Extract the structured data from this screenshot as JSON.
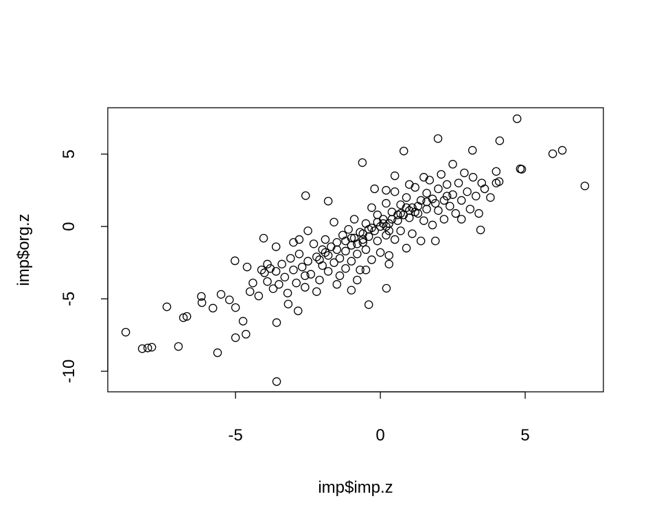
{
  "chart_data": {
    "type": "scatter",
    "title": "",
    "xlabel": "imp$imp.z",
    "ylabel": "imp$org.z",
    "xlim": [
      -9.41,
      7.7
    ],
    "ylim": [
      -11.42,
      8.2
    ],
    "xticks": [
      -5,
      0,
      5
    ],
    "yticks": [
      -10,
      -5,
      0,
      5
    ],
    "xtick_labels": [
      "-5",
      "0",
      "5"
    ],
    "ytick_labels": [
      "-10",
      "-5",
      "0",
      "5"
    ],
    "grid": false,
    "marker": "open-circle",
    "marker_color": "#000000",
    "points": [
      [
        -8.79,
        -7.3
      ],
      [
        -8.22,
        -8.44
      ],
      [
        -8.03,
        -8.39
      ],
      [
        -7.89,
        -8.34
      ],
      [
        -7.37,
        -5.55
      ],
      [
        -6.97,
        -8.29
      ],
      [
        -6.8,
        -6.3
      ],
      [
        -6.68,
        -6.21
      ],
      [
        -6.18,
        -4.83
      ],
      [
        -6.16,
        -5.26
      ],
      [
        -5.78,
        -5.64
      ],
      [
        -5.62,
        -8.72
      ],
      [
        -5.5,
        -4.69
      ],
      [
        -5.21,
        -5.07
      ],
      [
        -5.02,
        -2.37
      ],
      [
        -5.0,
        -7.68
      ],
      [
        -5.0,
        -5.6
      ],
      [
        -4.74,
        -6.54
      ],
      [
        -4.64,
        -7.44
      ],
      [
        -4.03,
        -0.81
      ],
      [
        -3.58,
        -10.71
      ],
      [
        -3.58,
        -6.64
      ],
      [
        -2.58,
        2.13
      ],
      [
        -1.8,
        1.75
      ],
      [
        -0.62,
        4.41
      ],
      [
        0.81,
        5.21
      ],
      [
        1.99,
        6.07
      ],
      [
        3.18,
        5.26
      ],
      [
        4.12,
        5.92
      ],
      [
        4.72,
        7.44
      ],
      [
        4.83,
        3.98
      ],
      [
        4.88,
        3.95
      ],
      [
        5.95,
        5.02
      ],
      [
        6.28,
        5.26
      ],
      [
        7.06,
        2.8
      ],
      [
        3.46,
        -0.24
      ],
      [
        -0.4,
        -5.4
      ],
      [
        0.21,
        -4.27
      ],
      [
        -3.18,
        -5.36
      ],
      [
        -2.84,
        -5.83
      ],
      [
        -4.0,
        -3.2
      ],
      [
        -3.9,
        -3.8
      ],
      [
        -3.8,
        -2.9
      ],
      [
        -3.7,
        -4.3
      ],
      [
        -3.6,
        -3.1
      ],
      [
        -3.5,
        -4.0
      ],
      [
        -3.4,
        -2.6
      ],
      [
        -3.3,
        -3.5
      ],
      [
        -3.2,
        -4.6
      ],
      [
        -3.1,
        -2.2
      ],
      [
        -3.0,
        -3.0
      ],
      [
        -2.9,
        -3.9
      ],
      [
        -2.8,
        -1.9
      ],
      [
        -2.7,
        -2.8
      ],
      [
        -2.6,
        -4.2
      ],
      [
        -2.5,
        -0.3
      ],
      [
        -2.5,
        -2.4
      ],
      [
        -2.4,
        -3.3
      ],
      [
        -2.3,
        -1.2
      ],
      [
        -2.2,
        -2.1
      ],
      [
        -2.1,
        -3.7
      ],
      [
        -2.0,
        -1.6
      ],
      [
        -2.0,
        -2.7
      ],
      [
        -1.9,
        -0.9
      ],
      [
        -1.8,
        -2.0
      ],
      [
        -1.8,
        -3.1
      ],
      [
        -1.7,
        -1.4
      ],
      [
        -1.6,
        -2.5
      ],
      [
        -1.6,
        0.3
      ],
      [
        -1.5,
        -1.1
      ],
      [
        -1.4,
        -2.2
      ],
      [
        -1.4,
        -3.4
      ],
      [
        -1.3,
        -0.6
      ],
      [
        -1.2,
        -1.7
      ],
      [
        -1.2,
        -2.9
      ],
      [
        -1.1,
        -0.2
      ],
      [
        -1.0,
        -1.3
      ],
      [
        -1.0,
        -2.4
      ],
      [
        -0.9,
        0.5
      ],
      [
        -0.9,
        -0.8
      ],
      [
        -0.8,
        -1.9
      ],
      [
        -0.7,
        -0.4
      ],
      [
        -0.7,
        -3.0
      ],
      [
        -0.6,
        -1.1
      ],
      [
        -0.5,
        0.2
      ],
      [
        -0.5,
        -1.6
      ],
      [
        -0.4,
        -0.7
      ],
      [
        -0.3,
        1.3
      ],
      [
        -0.3,
        -2.3
      ],
      [
        -0.2,
        -0.3
      ],
      [
        -0.1,
        -1.0
      ],
      [
        -0.1,
        0.8
      ],
      [
        0.0,
        0.0
      ],
      [
        0.0,
        -1.8
      ],
      [
        0.1,
        0.5
      ],
      [
        0.2,
        -0.6
      ],
      [
        0.2,
        1.6
      ],
      [
        0.3,
        -2.6
      ],
      [
        0.3,
        0.2
      ],
      [
        0.4,
        1.0
      ],
      [
        0.5,
        -0.9
      ],
      [
        0.5,
        2.4
      ],
      [
        0.6,
        0.4
      ],
      [
        0.7,
        -0.3
      ],
      [
        0.7,
        1.5
      ],
      [
        0.8,
        0.8
      ],
      [
        0.9,
        -1.5
      ],
      [
        0.9,
        2.0
      ],
      [
        1.0,
        0.6
      ],
      [
        1.1,
        1.3
      ],
      [
        1.1,
        -0.5
      ],
      [
        1.2,
        2.7
      ],
      [
        1.3,
        0.9
      ],
      [
        1.4,
        1.8
      ],
      [
        1.4,
        -1.0
      ],
      [
        1.5,
        0.4
      ],
      [
        1.6,
        2.3
      ],
      [
        1.6,
        1.2
      ],
      [
        1.7,
        3.2
      ],
      [
        1.8,
        0.1
      ],
      [
        1.8,
        1.9
      ],
      [
        1.9,
        -1.0
      ],
      [
        2.0,
        2.6
      ],
      [
        2.0,
        1.1
      ],
      [
        2.1,
        3.6
      ],
      [
        2.2,
        1.8
      ],
      [
        2.2,
        0.5
      ],
      [
        2.3,
        2.9
      ],
      [
        2.4,
        1.4
      ],
      [
        2.5,
        4.3
      ],
      [
        2.5,
        2.2
      ],
      [
        2.6,
        0.9
      ],
      [
        2.7,
        3.0
      ],
      [
        2.8,
        1.8
      ],
      [
        2.8,
        0.5
      ],
      [
        2.9,
        3.7
      ],
      [
        3.0,
        2.4
      ],
      [
        3.1,
        1.2
      ],
      [
        3.2,
        3.4
      ],
      [
        3.3,
        2.1
      ],
      [
        3.4,
        0.9
      ],
      [
        3.5,
        3.0
      ],
      [
        3.6,
        2.6
      ],
      [
        3.8,
        2.0
      ],
      [
        4.0,
        3.0
      ],
      [
        4.1,
        3.1
      ],
      [
        4.0,
        3.8
      ],
      [
        -2.6,
        -3.4
      ],
      [
        -3.0,
        -1.1
      ],
      [
        -2.2,
        -4.5
      ],
      [
        -1.5,
        -4.0
      ],
      [
        -0.8,
        -3.7
      ],
      [
        -1.0,
        -4.4
      ],
      [
        0.3,
        -2.0
      ],
      [
        -0.5,
        -3.0
      ],
      [
        0.5,
        3.5
      ],
      [
        1.0,
        2.9
      ],
      [
        1.5,
        3.4
      ],
      [
        -0.2,
        2.6
      ],
      [
        0.2,
        2.5
      ],
      [
        -2.8,
        -0.9
      ],
      [
        -3.6,
        -1.4
      ],
      [
        -4.5,
        -4.5
      ],
      [
        -4.4,
        -3.9
      ],
      [
        -4.2,
        -4.8
      ],
      [
        -4.6,
        -2.8
      ],
      [
        -4.1,
        -3.0
      ],
      [
        -3.9,
        -2.6
      ],
      [
        -1.0,
        -0.8
      ],
      [
        -0.6,
        -0.5
      ],
      [
        -0.3,
        -0.1
      ],
      [
        0.1,
        0.2
      ],
      [
        0.4,
        0.5
      ],
      [
        0.7,
        0.9
      ],
      [
        1.0,
        1.1
      ],
      [
        1.3,
        1.4
      ],
      [
        -1.2,
        -1.0
      ],
      [
        -0.8,
        -1.2
      ],
      [
        -0.4,
        -0.2
      ],
      [
        0.2,
        0.0
      ],
      [
        0.6,
        0.8
      ],
      [
        0.9,
        1.3
      ],
      [
        1.2,
        1.0
      ],
      [
        1.6,
        1.7
      ],
      [
        -1.5,
        -1.6
      ],
      [
        -1.9,
        -1.8
      ],
      [
        -2.1,
        -2.3
      ],
      [
        1.9,
        1.6
      ],
      [
        2.3,
        2.1
      ],
      [
        -0.1,
        0.3
      ],
      [
        0.3,
        -0.3
      ],
      [
        -0.6,
        -0.9
      ]
    ]
  }
}
